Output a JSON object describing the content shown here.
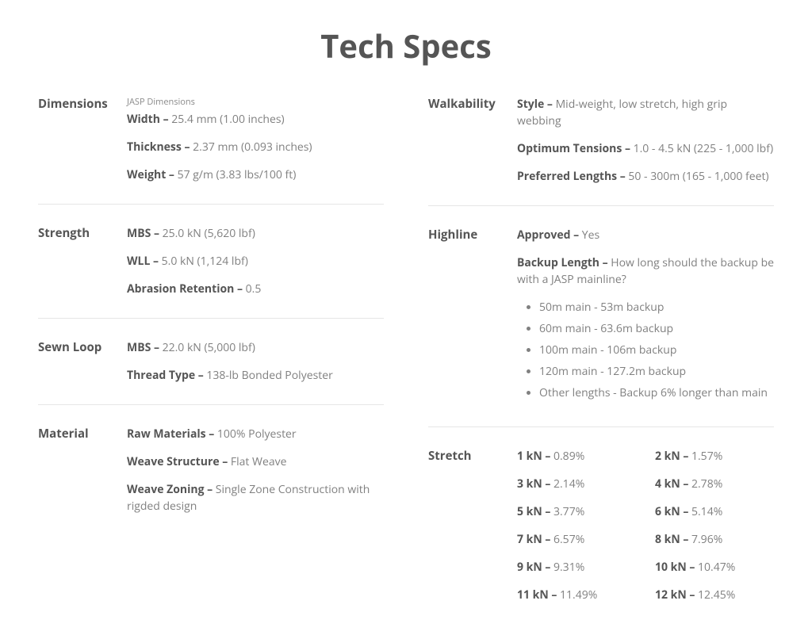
{
  "title": "Tech Specs",
  "colors": {
    "text_primary": "#555555",
    "text_secondary": "#808080",
    "divider": "#e6e6e6",
    "background": "#ffffff"
  },
  "left": {
    "dimensions": {
      "heading": "Dimensions",
      "subheading": "JASP Dimensions",
      "specs": [
        {
          "label": "Width",
          "value": "25.4 mm (1.00 inches)"
        },
        {
          "label": "Thickness",
          "value": "2.37 mm (0.093 inches)"
        },
        {
          "label": "Weight",
          "value": "57 g/m (3.83 lbs/100 ft)"
        }
      ]
    },
    "strength": {
      "heading": "Strength",
      "specs": [
        {
          "label": "MBS",
          "value": "25.0 kN (5,620 lbf)"
        },
        {
          "label": "WLL",
          "value": "5.0 kN (1,124 lbf)"
        },
        {
          "label": "Abrasion Retention",
          "value": "0.5"
        }
      ]
    },
    "sewn_loop": {
      "heading": "Sewn Loop",
      "specs": [
        {
          "label": "MBS",
          "value": "22.0 kN (5,000 lbf)"
        },
        {
          "label": "Thread Type",
          "value": "138-lb Bonded Polyester"
        }
      ]
    },
    "material": {
      "heading": "Material",
      "specs": [
        {
          "label": "Raw Materials",
          "value": "100% Polyester"
        },
        {
          "label": "Weave Structure",
          "value": "Flat Weave"
        },
        {
          "label": "Weave Zoning",
          "value": "Single Zone Construction with rigded design"
        }
      ]
    }
  },
  "right": {
    "walkability": {
      "heading": "Walkability",
      "specs": [
        {
          "label": "Style",
          "value": "Mid-weight, low stretch, high grip webbing"
        },
        {
          "label": "Optimum Tensions",
          "value": "1.0 - 4.5 kN (225 - 1,000 lbf)"
        },
        {
          "label": "Preferred Lengths",
          "value": "50 - 300m (165 - 1,000 feet)"
        }
      ]
    },
    "highline": {
      "heading": "Highline",
      "approved": {
        "label": "Approved",
        "value": "Yes"
      },
      "backup_length": {
        "label": "Backup Length",
        "value": "How long should the backup be with a JASP mainline?"
      },
      "bullets": [
        "50m main - 53m backup",
        "60m main - 63.6m backup",
        "100m main - 106m backup",
        "120m main - 127.2m backup",
        "Other lengths - Backup 6% longer than main"
      ]
    },
    "stretch": {
      "heading": "Stretch",
      "pairs": [
        {
          "label": "1 kN",
          "value": "0.89%"
        },
        {
          "label": "2 kN",
          "value": "1.57%"
        },
        {
          "label": "3 kN",
          "value": "2.14%"
        },
        {
          "label": "4 kN",
          "value": "2.78%"
        },
        {
          "label": "5 kN",
          "value": "3.77%"
        },
        {
          "label": "6 kN",
          "value": "5.14%"
        },
        {
          "label": "7 kN",
          "value": "6.57%"
        },
        {
          "label": "8 kN",
          "value": "7.96%"
        },
        {
          "label": "9 kN",
          "value": "9.31%"
        },
        {
          "label": "10 kN",
          "value": "10.47%"
        },
        {
          "label": "11 kN",
          "value": "11.49%"
        },
        {
          "label": "12 kN",
          "value": "12.45%"
        }
      ]
    }
  }
}
